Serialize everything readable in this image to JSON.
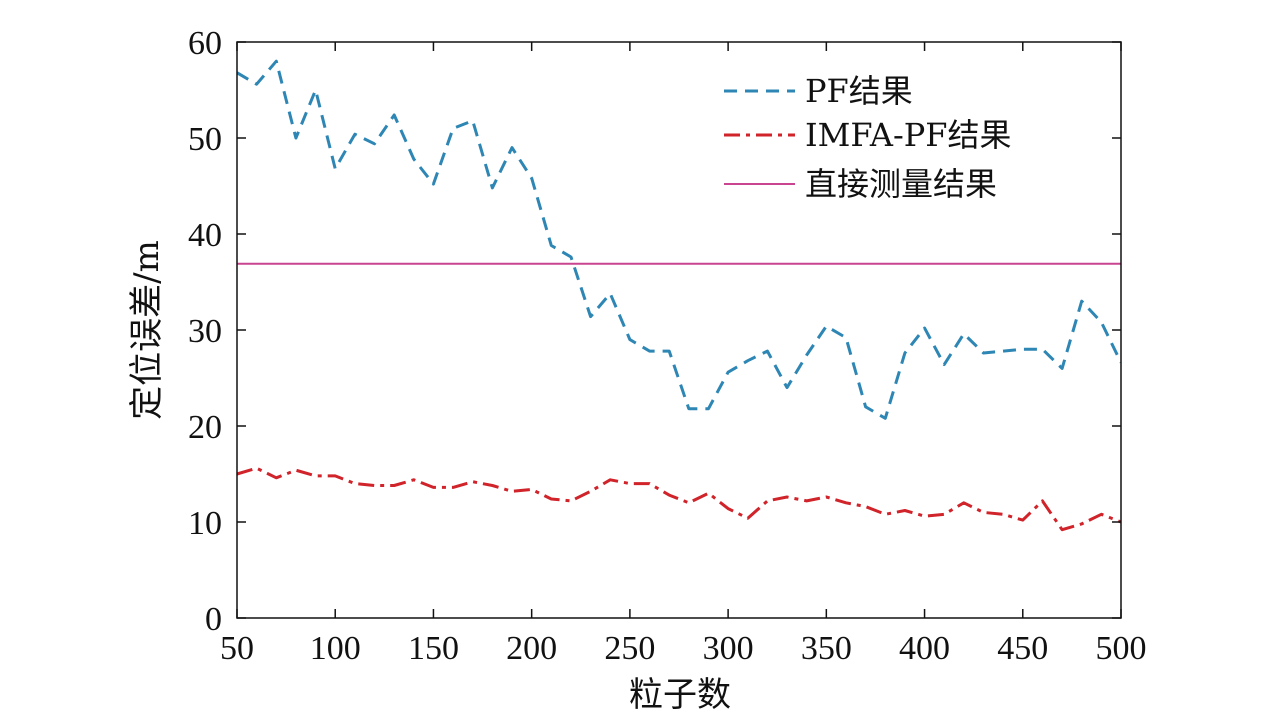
{
  "chart_data": {
    "type": "line",
    "xlabel": "粒子数",
    "ylabel": "定位误差/m",
    "xlim": [
      50,
      500
    ],
    "ylim": [
      0,
      60
    ],
    "xticks": [
      50,
      100,
      150,
      200,
      250,
      300,
      350,
      400,
      450,
      500
    ],
    "yticks": [
      0,
      10,
      20,
      30,
      40,
      50,
      60
    ],
    "grid": false,
    "legend_position": "top-right",
    "series": [
      {
        "name": "PF结果",
        "style": "dashed",
        "color": "#2e86b4",
        "x": [
          50,
          60,
          70,
          80,
          90,
          100,
          110,
          120,
          130,
          140,
          150,
          160,
          170,
          180,
          190,
          200,
          210,
          220,
          230,
          240,
          250,
          260,
          270,
          280,
          290,
          300,
          310,
          320,
          330,
          340,
          350,
          360,
          370,
          380,
          390,
          400,
          410,
          420,
          430,
          440,
          450,
          460,
          470,
          480,
          490,
          500
        ],
        "y": [
          56.8,
          55.6,
          58.0,
          50.0,
          55.0,
          46.8,
          50.4,
          49.4,
          52.4,
          47.8,
          45.2,
          51.0,
          51.8,
          44.8,
          49.0,
          45.8,
          38.8,
          37.6,
          31.4,
          33.8,
          29.0,
          27.8,
          27.8,
          21.8,
          21.8,
          25.6,
          26.8,
          27.8,
          24.0,
          27.4,
          30.4,
          29.2,
          22.0,
          20.8,
          27.6,
          30.2,
          26.4,
          29.6,
          27.6,
          27.8,
          28.0,
          28.0,
          26.0,
          33.0,
          30.8,
          26.6
        ]
      },
      {
        "name": "IMFA-PF结果",
        "style": "dashdot",
        "color": "#d0232a",
        "x": [
          50,
          60,
          70,
          80,
          90,
          100,
          110,
          120,
          130,
          140,
          150,
          160,
          170,
          180,
          190,
          200,
          210,
          220,
          230,
          240,
          250,
          260,
          270,
          280,
          290,
          300,
          310,
          320,
          330,
          340,
          350,
          360,
          370,
          380,
          390,
          400,
          410,
          420,
          430,
          440,
          450,
          460,
          470,
          480,
          490,
          500
        ],
        "y": [
          15.0,
          15.6,
          14.6,
          15.4,
          14.8,
          14.8,
          14.0,
          13.8,
          13.8,
          14.4,
          13.6,
          13.6,
          14.2,
          13.8,
          13.2,
          13.4,
          12.4,
          12.2,
          13.2,
          14.4,
          14.0,
          14.0,
          12.8,
          12.0,
          13.0,
          11.4,
          10.4,
          12.2,
          12.6,
          12.2,
          12.6,
          12.0,
          11.6,
          10.8,
          11.2,
          10.6,
          10.8,
          12.0,
          11.0,
          10.8,
          10.2,
          12.2,
          9.2,
          9.8,
          10.8,
          10.0
        ]
      },
      {
        "name": "直接测量结果",
        "style": "solid",
        "color": "#c9458f",
        "x": [
          50,
          500
        ],
        "y": [
          36.9,
          36.9
        ]
      }
    ]
  }
}
